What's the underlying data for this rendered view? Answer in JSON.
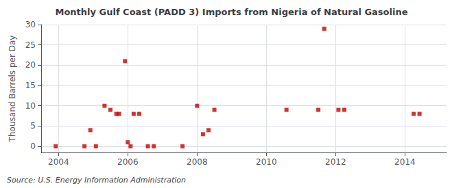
{
  "chart_data": {
    "type": "scatter",
    "title": "Monthly Gulf Coast (PADD 3) Imports from Nigeria of Natural Gasoline",
    "ylabel": "Thousand Barrels per Day",
    "annotation": "Source: U.S. Energy Information Administration",
    "x": [
      2003.92,
      2004.75,
      2004.92,
      2005.08,
      2005.33,
      2005.5,
      2005.67,
      2005.75,
      2005.92,
      2006.0,
      2006.08,
      2006.17,
      2006.33,
      2006.58,
      2006.75,
      2007.58,
      2008.0,
      2008.17,
      2008.33,
      2008.5,
      2010.58,
      2011.5,
      2011.67,
      2012.08,
      2012.25,
      2014.25,
      2014.42
    ],
    "values": [
      0,
      0,
      4,
      0,
      10,
      9,
      8,
      8,
      21,
      1,
      0,
      8,
      8,
      0,
      0,
      0,
      10,
      3,
      4,
      9,
      9,
      9,
      29,
      9,
      9,
      8,
      8
    ],
    "color": "#cc0000",
    "marker": "square",
    "xlim": [
      2003.5,
      2015.2
    ],
    "xticks": [
      2004,
      2006,
      2008,
      2010,
      2012,
      2014
    ],
    "ylim": [
      -1.5,
      30
    ],
    "yticks": [
      0,
      5,
      10,
      15,
      20,
      25,
      30
    ],
    "grid": true
  }
}
